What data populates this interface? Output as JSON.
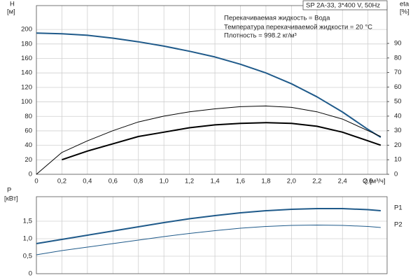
{
  "chart_data": [
    {
      "type": "line",
      "annotations": [
        "SP 2A-33, 3*400 V, 50Hz",
        "Перекачиваемая жидкость = Вода",
        "Температура перекачиваемой жидкости = 20 °C",
        "Плотность = 998.2 кг/м³"
      ],
      "y_label": "H",
      "y_unit": "[м]",
      "y2_label": "eta",
      "y2_unit": "[%]",
      "x_label": "Q [м³/ч]",
      "x": [
        0,
        0.2,
        0.4,
        0.6,
        0.8,
        1.0,
        1.2,
        1.4,
        1.6,
        1.8,
        2.0,
        2.2,
        2.4,
        2.6,
        2.7
      ],
      "xlim": [
        0,
        2.75
      ],
      "xticks": [
        0,
        {
          "value": 0.2,
          "label": "0,2"
        },
        {
          "value": 0.4,
          "label": "0,4"
        },
        {
          "value": 0.6,
          "label": "0,6"
        },
        {
          "value": 0.8,
          "label": "0,8"
        },
        {
          "value": 1.0,
          "label": "1,0"
        },
        {
          "value": 1.2,
          "label": "1,2"
        },
        {
          "value": 1.4,
          "label": "1,4"
        },
        {
          "value": 1.6,
          "label": "1,6"
        },
        {
          "value": 1.8,
          "label": "1,8"
        },
        {
          "value": 2.0,
          "label": "2,0"
        },
        {
          "value": 2.2,
          "label": "2,2"
        },
        {
          "value": 2.4,
          "label": "2,4"
        },
        {
          "value": 2.6,
          "label": "2,6"
        }
      ],
      "ylim": [
        0,
        233
      ],
      "yticks": [
        0,
        20,
        40,
        60,
        80,
        100,
        120,
        140,
        160,
        180,
        200
      ],
      "y2lim": [
        0,
        116
      ],
      "y2ticks": [
        0,
        10,
        20,
        30,
        40,
        50,
        60,
        70,
        80,
        90
      ],
      "grid": true,
      "series": [
        {
          "color": "#1f5a8a",
          "width": 2,
          "values": [
            195,
            194,
            192,
            188,
            183,
            177,
            170,
            162,
            152,
            140,
            125,
            107,
            86,
            62,
            51
          ]
        },
        {
          "color": "#000000",
          "width": 1,
          "axis": "y2",
          "values": [
            0,
            15,
            23,
            30,
            36,
            40,
            43,
            45,
            46.5,
            47,
            46,
            43,
            38,
            30,
            26
          ]
        },
        {
          "color": "#000000",
          "width": 2,
          "axis": "y2",
          "values": [
            null,
            10,
            16,
            21,
            26,
            29,
            32,
            34,
            35,
            35.5,
            35,
            33,
            29,
            23,
            20
          ]
        }
      ]
    },
    {
      "type": "line",
      "y_label": "P",
      "y_unit": "[кВт]",
      "x": [
        0,
        0.2,
        0.4,
        0.6,
        0.8,
        1.0,
        1.2,
        1.4,
        1.6,
        1.8,
        2.0,
        2.2,
        2.4,
        2.6,
        2.7
      ],
      "xlim": [
        0,
        2.75
      ],
      "ylim": [
        0,
        2.2
      ],
      "yticks": [
        0,
        {
          "value": 0.5,
          "label": "0,5"
        },
        {
          "value": 1.0,
          "label": "1,0"
        },
        {
          "value": 1.5,
          "label": "1,5"
        }
      ],
      "grid": true,
      "series": [
        {
          "name": "P1",
          "color": "#1f5a8a",
          "width": 2,
          "values": [
            0.86,
            0.98,
            1.1,
            1.22,
            1.34,
            1.46,
            1.57,
            1.66,
            1.74,
            1.8,
            1.84,
            1.86,
            1.86,
            1.83,
            1.8
          ]
        },
        {
          "name": "P2",
          "color": "#1f5a8a",
          "width": 1,
          "values": [
            0.54,
            0.66,
            0.76,
            0.86,
            0.96,
            1.06,
            1.15,
            1.23,
            1.3,
            1.35,
            1.38,
            1.39,
            1.38,
            1.35,
            1.32
          ]
        }
      ]
    }
  ]
}
